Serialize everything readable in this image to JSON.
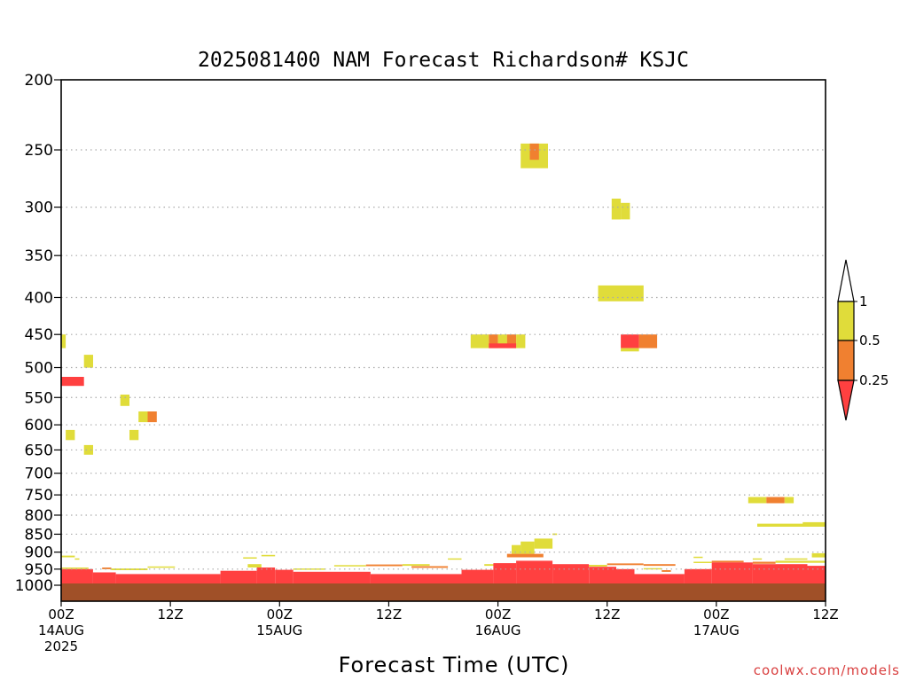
{
  "chart_data": {
    "type": "heatmap",
    "title": "2025081400 NAM Forecast Richardson# KSJC",
    "xlabel": "Forecast Time (UTC)",
    "ylabel": "",
    "y_scale": "log",
    "ylim": [
      1000,
      200
    ],
    "xlim": [
      0,
      84
    ],
    "grid": "dotted-horizontal",
    "legend_placement": "right",
    "y_ticks": [
      200,
      250,
      300,
      350,
      400,
      450,
      500,
      550,
      600,
      650,
      700,
      750,
      800,
      850,
      900,
      950,
      1000
    ],
    "x_ticks": [
      {
        "x": 0,
        "lines": [
          "00Z",
          "14AUG",
          "2025"
        ]
      },
      {
        "x": 12,
        "lines": [
          "12Z"
        ]
      },
      {
        "x": 24,
        "lines": [
          "00Z",
          "15AUG"
        ]
      },
      {
        "x": 36,
        "lines": [
          "12Z"
        ]
      },
      {
        "x": 48,
        "lines": [
          "00Z",
          "16AUG"
        ]
      },
      {
        "x": 60,
        "lines": [
          "12Z"
        ]
      },
      {
        "x": 72,
        "lines": [
          "00Z",
          "17AUG"
        ]
      },
      {
        "x": 84,
        "lines": [
          "12Z"
        ]
      }
    ],
    "colorbar": {
      "labels": [
        "1",
        "0.5",
        "0.25"
      ],
      "colors": {
        "high": "#ffffff",
        "yellow": "#e0dc3a",
        "orange": "#f08030",
        "red": "#ff4040"
      }
    },
    "ground_color": "#a05028",
    "cells": [
      {
        "x0": 0,
        "x1": 0.5,
        "p0": 450,
        "p1": 470,
        "c": "yellow"
      },
      {
        "x0": 0,
        "x1": 2.5,
        "p0": 515,
        "p1": 530,
        "c": "red"
      },
      {
        "x0": 2.5,
        "x1": 3.5,
        "p0": 480,
        "p1": 500,
        "c": "yellow"
      },
      {
        "x0": 0.5,
        "x1": 1.5,
        "p0": 610,
        "p1": 630,
        "c": "yellow"
      },
      {
        "x0": 2.5,
        "x1": 3.5,
        "p0": 640,
        "p1": 660,
        "c": "yellow"
      },
      {
        "x0": 6.5,
        "x1": 7.5,
        "p0": 545,
        "p1": 565,
        "c": "yellow"
      },
      {
        "x0": 7.5,
        "x1": 8.5,
        "p0": 610,
        "p1": 630,
        "c": "yellow"
      },
      {
        "x0": 8.5,
        "x1": 9.5,
        "p0": 575,
        "p1": 595,
        "c": "yellow"
      },
      {
        "x0": 9.5,
        "x1": 10.5,
        "p0": 575,
        "p1": 595,
        "c": "orange"
      },
      {
        "x0": 50.5,
        "x1": 53.5,
        "p0": 245,
        "p1": 265,
        "c": "yellow"
      },
      {
        "x0": 51.5,
        "x1": 52.5,
        "p0": 245,
        "p1": 258,
        "c": "orange"
      },
      {
        "x0": 60.5,
        "x1": 61.5,
        "p0": 292,
        "p1": 312,
        "c": "yellow"
      },
      {
        "x0": 61.5,
        "x1": 62.5,
        "p0": 296,
        "p1": 312,
        "c": "yellow"
      },
      {
        "x0": 59,
        "x1": 64,
        "p0": 385,
        "p1": 405,
        "c": "yellow"
      },
      {
        "x0": 45,
        "x1": 47,
        "p0": 450,
        "p1": 470,
        "c": "yellow"
      },
      {
        "x0": 47,
        "x1": 48,
        "p0": 450,
        "p1": 470,
        "c": "orange"
      },
      {
        "x0": 48,
        "x1": 49,
        "p0": 450,
        "p1": 470,
        "c": "yellow"
      },
      {
        "x0": 49,
        "x1": 50,
        "p0": 450,
        "p1": 470,
        "c": "orange"
      },
      {
        "x0": 50,
        "x1": 51,
        "p0": 450,
        "p1": 470,
        "c": "yellow"
      },
      {
        "x0": 47,
        "x1": 50,
        "p0": 463,
        "p1": 470,
        "c": "red"
      },
      {
        "x0": 61.5,
        "x1": 63.5,
        "p0": 450,
        "p1": 470,
        "c": "red"
      },
      {
        "x0": 63.5,
        "x1": 65.5,
        "p0": 450,
        "p1": 470,
        "c": "orange"
      },
      {
        "x0": 61.5,
        "x1": 63.5,
        "p0": 470,
        "p1": 475,
        "c": "yellow"
      },
      {
        "x0": 75.5,
        "x1": 77.5,
        "p0": 755,
        "p1": 770,
        "c": "yellow"
      },
      {
        "x0": 77.5,
        "x1": 79.5,
        "p0": 755,
        "p1": 770,
        "c": "orange"
      },
      {
        "x0": 79.5,
        "x1": 80.5,
        "p0": 755,
        "p1": 770,
        "c": "yellow"
      },
      {
        "x0": 76.5,
        "x1": 84,
        "p0": 822,
        "p1": 830,
        "c": "yellow"
      },
      {
        "x0": 81.5,
        "x1": 84,
        "p0": 818,
        "p1": 826,
        "c": "yellow"
      },
      {
        "x0": 49.5,
        "x1": 50.5,
        "p0": 880,
        "p1": 905,
        "c": "yellow"
      },
      {
        "x0": 50.5,
        "x1": 52,
        "p0": 870,
        "p1": 905,
        "c": "yellow"
      },
      {
        "x0": 52,
        "x1": 54,
        "p0": 862,
        "p1": 890,
        "c": "yellow"
      },
      {
        "x0": 54,
        "x1": 54.5,
        "p0": 848,
        "p1": 852,
        "c": "yellow"
      },
      {
        "x0": 49,
        "x1": 53,
        "p0": 905,
        "p1": 915,
        "c": "orange"
      },
      {
        "x0": 0,
        "x1": 1.5,
        "p0": 910,
        "p1": 915,
        "c": "yellow"
      },
      {
        "x0": 1.5,
        "x1": 2,
        "p0": 918,
        "p1": 921,
        "c": "yellow"
      },
      {
        "x0": 20,
        "x1": 21.5,
        "p0": 915,
        "p1": 919,
        "c": "yellow"
      },
      {
        "x0": 22,
        "x1": 23.5,
        "p0": 908,
        "p1": 912,
        "c": "yellow"
      },
      {
        "x0": 42.5,
        "x1": 44,
        "p0": 918,
        "p1": 922,
        "c": "yellow"
      },
      {
        "x0": 69.5,
        "x1": 70.5,
        "p0": 913,
        "p1": 917,
        "c": "yellow"
      },
      {
        "x0": 76,
        "x1": 77,
        "p0": 918,
        "p1": 922,
        "c": "yellow"
      },
      {
        "x0": 79.5,
        "x1": 82,
        "p0": 918,
        "p1": 922,
        "c": "yellow"
      },
      {
        "x0": 82.5,
        "x1": 84,
        "p0": 903,
        "p1": 915,
        "c": "yellow"
      },
      {
        "x0": 0,
        "x1": 3,
        "p0": 945,
        "p1": 949,
        "c": "yellow"
      },
      {
        "x0": 4.5,
        "x1": 5.5,
        "p0": 945,
        "p1": 950,
        "c": "orange"
      },
      {
        "x0": 5.5,
        "x1": 9.5,
        "p0": 948,
        "p1": 953,
        "c": "yellow"
      },
      {
        "x0": 9.5,
        "x1": 12.5,
        "p0": 942,
        "p1": 946,
        "c": "yellow"
      },
      {
        "x0": 20.5,
        "x1": 22,
        "p0": 935,
        "p1": 945,
        "c": "yellow"
      },
      {
        "x0": 25.5,
        "x1": 29,
        "p0": 948,
        "p1": 952,
        "c": "yellow"
      },
      {
        "x0": 30,
        "x1": 33.5,
        "p0": 938,
        "p1": 942,
        "c": "yellow"
      },
      {
        "x0": 33.5,
        "x1": 37.5,
        "p0": 936,
        "p1": 941,
        "c": "orange"
      },
      {
        "x0": 37.5,
        "x1": 40.5,
        "p0": 935,
        "p1": 940,
        "c": "yellow"
      },
      {
        "x0": 38.5,
        "x1": 42.5,
        "p0": 941,
        "p1": 946,
        "c": "orange"
      },
      {
        "x0": 46.5,
        "x1": 48,
        "p0": 935,
        "p1": 940,
        "c": "yellow"
      },
      {
        "x0": 54,
        "x1": 60,
        "p0": 937,
        "p1": 942,
        "c": "yellow"
      },
      {
        "x0": 60,
        "x1": 64,
        "p0": 933,
        "p1": 938,
        "c": "orange"
      },
      {
        "x0": 64,
        "x1": 67.5,
        "p0": 935,
        "p1": 940,
        "c": "orange"
      },
      {
        "x0": 64,
        "x1": 66,
        "p0": 947,
        "p1": 951,
        "c": "yellow"
      },
      {
        "x0": 66,
        "x1": 67,
        "p0": 953,
        "p1": 958,
        "c": "orange"
      },
      {
        "x0": 69.5,
        "x1": 71.5,
        "p0": 928,
        "p1": 932,
        "c": "yellow"
      },
      {
        "x0": 71.5,
        "x1": 75,
        "p0": 925,
        "p1": 930,
        "c": "orange"
      },
      {
        "x0": 76,
        "x1": 78.5,
        "p0": 928,
        "p1": 934,
        "c": "orange"
      },
      {
        "x0": 78.5,
        "x1": 84,
        "p0": 925,
        "p1": 931,
        "c": "yellow"
      },
      {
        "x0": 0,
        "x1": 3.5,
        "p0": 950,
        "p1": 1000,
        "c": "red"
      },
      {
        "x0": 3.5,
        "x1": 6,
        "p0": 960,
        "p1": 1000,
        "c": "red"
      },
      {
        "x0": 6,
        "x1": 15,
        "p0": 965,
        "p1": 1000,
        "c": "red"
      },
      {
        "x0": 15,
        "x1": 17.5,
        "p0": 965,
        "p1": 1000,
        "c": "red"
      },
      {
        "x0": 17.5,
        "x1": 21.5,
        "p0": 955,
        "p1": 1000,
        "c": "red"
      },
      {
        "x0": 21.5,
        "x1": 23.5,
        "p0": 945,
        "p1": 1000,
        "c": "red"
      },
      {
        "x0": 23.5,
        "x1": 25.5,
        "p0": 952,
        "p1": 1000,
        "c": "red"
      },
      {
        "x0": 25.5,
        "x1": 34,
        "p0": 958,
        "p1": 1000,
        "c": "red"
      },
      {
        "x0": 34,
        "x1": 40,
        "p0": 965,
        "p1": 1000,
        "c": "red"
      },
      {
        "x0": 40,
        "x1": 44,
        "p0": 965,
        "p1": 1000,
        "c": "red"
      },
      {
        "x0": 44,
        "x1": 47.5,
        "p0": 952,
        "p1": 1000,
        "c": "red"
      },
      {
        "x0": 47.5,
        "x1": 50,
        "p0": 932,
        "p1": 1000,
        "c": "red"
      },
      {
        "x0": 50,
        "x1": 54,
        "p0": 925,
        "p1": 1000,
        "c": "red"
      },
      {
        "x0": 54,
        "x1": 58,
        "p0": 935,
        "p1": 1000,
        "c": "red"
      },
      {
        "x0": 58,
        "x1": 61,
        "p0": 943,
        "p1": 1000,
        "c": "red"
      },
      {
        "x0": 61,
        "x1": 63,
        "p0": 950,
        "p1": 1000,
        "c": "red"
      },
      {
        "x0": 63,
        "x1": 68.5,
        "p0": 965,
        "p1": 1000,
        "c": "red"
      },
      {
        "x0": 68.5,
        "x1": 71.5,
        "p0": 950,
        "p1": 1000,
        "c": "red"
      },
      {
        "x0": 71.5,
        "x1": 76,
        "p0": 930,
        "p1": 1000,
        "c": "red"
      },
      {
        "x0": 76,
        "x1": 82,
        "p0": 935,
        "p1": 1000,
        "c": "red"
      },
      {
        "x0": 82,
        "x1": 84,
        "p0": 940,
        "p1": 1000,
        "c": "red"
      }
    ]
  },
  "watermark": "coolwx.com/models"
}
